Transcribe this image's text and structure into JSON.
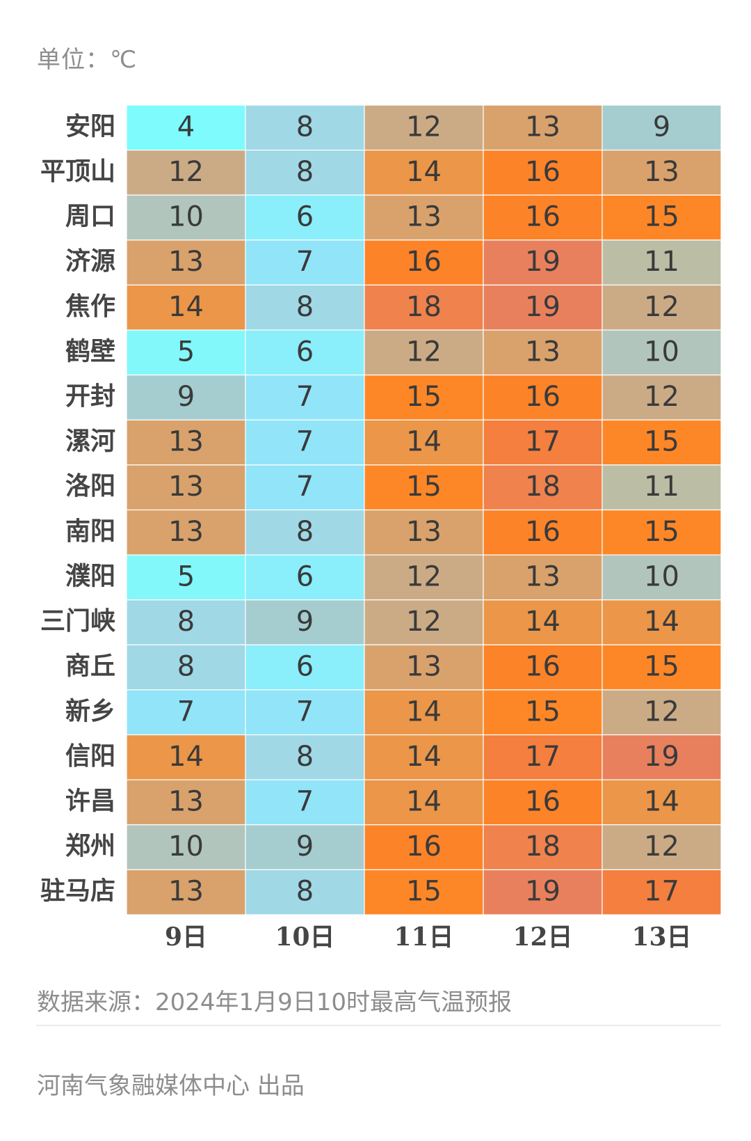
{
  "unit_label": "单位：℃",
  "source_text": "数据来源：2024年1月9日10时最高气温预报",
  "credit_text": "河南气象融媒体中心 出品",
  "chart_data": {
    "type": "heatmap",
    "columns": [
      "9日",
      "10日",
      "11日",
      "12日",
      "13日"
    ],
    "rows": [
      "安阳",
      "平顶山",
      "周口",
      "济源",
      "焦作",
      "鹤壁",
      "开封",
      "漯河",
      "洛阳",
      "南阳",
      "濮阳",
      "三门峡",
      "商丘",
      "新乡",
      "信阳",
      "许昌",
      "郑州",
      "驻马店"
    ],
    "values": [
      [
        4,
        8,
        12,
        13,
        9
      ],
      [
        12,
        8,
        14,
        16,
        13
      ],
      [
        10,
        6,
        13,
        16,
        15
      ],
      [
        13,
        7,
        16,
        19,
        11
      ],
      [
        14,
        8,
        18,
        19,
        12
      ],
      [
        5,
        6,
        12,
        13,
        10
      ],
      [
        9,
        7,
        15,
        16,
        12
      ],
      [
        13,
        7,
        14,
        17,
        15
      ],
      [
        13,
        7,
        15,
        18,
        11
      ],
      [
        13,
        8,
        13,
        16,
        15
      ],
      [
        5,
        6,
        12,
        13,
        10
      ],
      [
        8,
        9,
        12,
        14,
        14
      ],
      [
        8,
        6,
        13,
        16,
        15
      ],
      [
        7,
        7,
        14,
        15,
        12
      ],
      [
        14,
        8,
        14,
        17,
        19
      ],
      [
        13,
        7,
        14,
        16,
        14
      ],
      [
        10,
        9,
        16,
        18,
        12
      ],
      [
        13,
        8,
        15,
        19,
        17
      ]
    ],
    "color_scale": {
      "4": "#7dfbfd",
      "5": "#82f8fb",
      "6": "#8aeefb",
      "7": "#92e4f8",
      "8": "#a0d8e6",
      "9": "#a5cdd0",
      "10": "#b1c5bd",
      "11": "#bbbea5",
      "12": "#cbab86",
      "13": "#d9a26c",
      "14": "#eb9648",
      "15": "#fd8727",
      "16": "#fd8329",
      "17": "#f47f3e",
      "18": "#ef824d",
      "19": "#e9805d"
    }
  }
}
